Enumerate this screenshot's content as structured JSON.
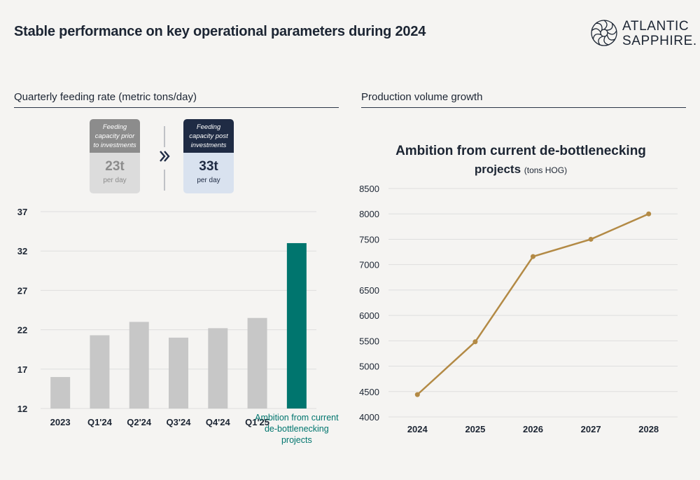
{
  "title": "Stable performance on key operational parameters during 2024",
  "logo": {
    "line1": "ATLANTIC",
    "line2": "SAPPHIRE."
  },
  "left_section": {
    "title": "Quarterly feeding rate (metric tons/day)"
  },
  "right_section": {
    "title": "Production volume growth"
  },
  "capacity_before": {
    "label": "Feeding capacity prior to investments",
    "value": "23t",
    "unit": "per day"
  },
  "capacity_after": {
    "label": "Feeding capacity post investments",
    "value": "33t",
    "unit": "per day"
  },
  "colors": {
    "bar_gray": "#c7c7c7",
    "bar_accent": "#00756e",
    "line": "#b38a45",
    "dark_navy": "#1f2b44",
    "gray_box": "#8c8c8c"
  },
  "chart_data": [
    {
      "type": "bar",
      "categories": [
        "2023",
        "Q1'24",
        "Q2'24",
        "Q3'24",
        "Q4'24",
        "Q1'25",
        "Ambition from current de-bottlenecking projects"
      ],
      "values": [
        16,
        21.3,
        23,
        21,
        22.2,
        23.5,
        33
      ],
      "highlight_index": 6,
      "ylim": [
        12,
        37
      ],
      "yticks": [
        12,
        17,
        22,
        27,
        32,
        37
      ],
      "grid": true,
      "title": "",
      "xlabel": "",
      "ylabel": ""
    },
    {
      "type": "line",
      "title": "Ambition from current de-bottlenecking projects",
      "title_unit": "(tons HOG)",
      "x": [
        "2024",
        "2025",
        "2026",
        "2027",
        "2028"
      ],
      "values": [
        4440,
        5480,
        7160,
        7500,
        8000
      ],
      "ylim": [
        4000,
        8500
      ],
      "yticks": [
        4000,
        4500,
        5000,
        5500,
        6000,
        6500,
        7000,
        7500,
        8000,
        8500
      ],
      "grid": true,
      "xlabel": "",
      "ylabel": ""
    }
  ]
}
